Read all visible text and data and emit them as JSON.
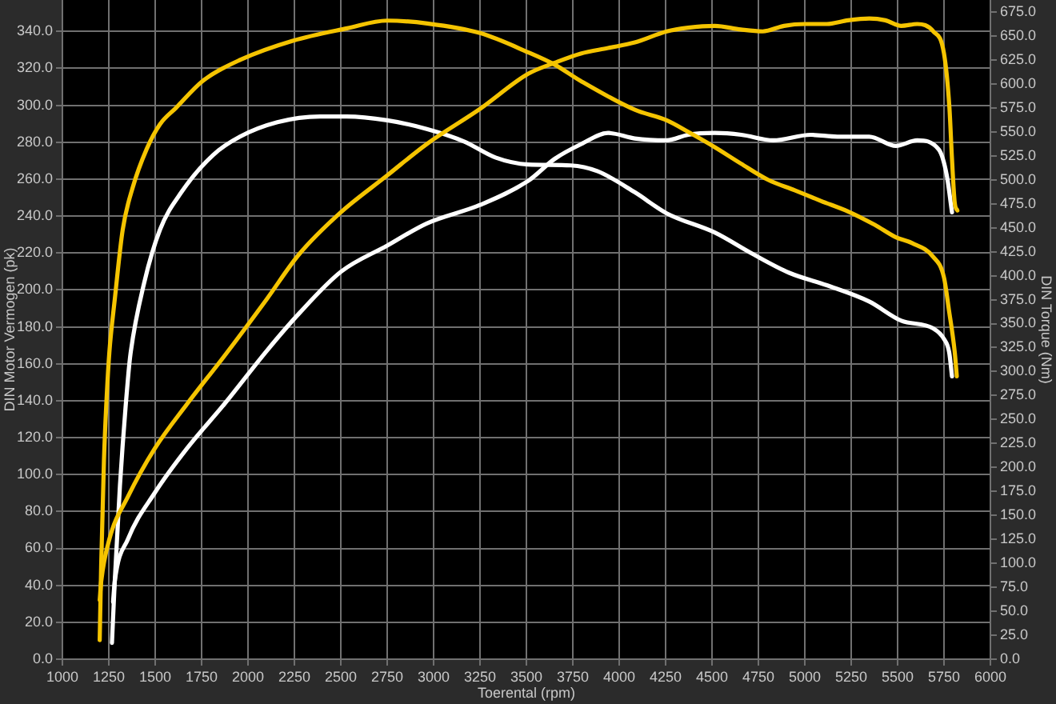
{
  "chart_data": {
    "type": "line",
    "xlabel": "Toerental (rpm)",
    "ylabel": "DIN Motor Vermogen (pk)",
    "y2label": "DIN Torque (Nm)",
    "xlim": [
      1000,
      6000
    ],
    "xticks": [
      1000,
      1250,
      1500,
      1750,
      2000,
      2250,
      2500,
      2750,
      3000,
      3250,
      3500,
      3750,
      4000,
      4250,
      4500,
      4750,
      5000,
      5250,
      5500,
      5750,
      6000
    ],
    "ylim": [
      0,
      357
    ],
    "yticks": [
      {
        "value": 0,
        "label": "0.0"
      },
      {
        "value": 20,
        "label": "20.0"
      },
      {
        "value": 40,
        "label": "40.0"
      },
      {
        "value": 60,
        "label": "60.0"
      },
      {
        "value": 80,
        "label": "80.0"
      },
      {
        "value": 100,
        "label": "100.0"
      },
      {
        "value": 120,
        "label": "120.0"
      },
      {
        "value": 140,
        "label": "140.0"
      },
      {
        "value": 160,
        "label": "160.0"
      },
      {
        "value": 180,
        "label": "180.0"
      },
      {
        "value": 200,
        "label": "200.0"
      },
      {
        "value": 220,
        "label": "220.0"
      },
      {
        "value": 240,
        "label": "240.0"
      },
      {
        "value": 260,
        "label": "260.0"
      },
      {
        "value": 280,
        "label": "280.0"
      },
      {
        "value": 300,
        "label": "300.0"
      },
      {
        "value": 320,
        "label": "320.0"
      },
      {
        "value": 340,
        "label": "340.0"
      }
    ],
    "y2lim": [
      0,
      687.5
    ],
    "y2ticks": [
      {
        "value": 0,
        "label": "0.0"
      },
      {
        "value": 25,
        "label": "25.0"
      },
      {
        "value": 50,
        "label": "50.0"
      },
      {
        "value": 75,
        "label": "75.0"
      },
      {
        "value": 100,
        "label": "100.0"
      },
      {
        "value": 125,
        "label": "125.0"
      },
      {
        "value": 150,
        "label": "150.0"
      },
      {
        "value": 175,
        "label": "175.0"
      },
      {
        "value": 200,
        "label": "200.0"
      },
      {
        "value": 225,
        "label": "225.0"
      },
      {
        "value": 250,
        "label": "250.0"
      },
      {
        "value": 275,
        "label": "275.0"
      },
      {
        "value": 300,
        "label": "300.0"
      },
      {
        "value": 325,
        "label": "325.0"
      },
      {
        "value": 350,
        "label": "350.0"
      },
      {
        "value": 375,
        "label": "375.0"
      },
      {
        "value": 400,
        "label": "400.0"
      },
      {
        "value": 425,
        "label": "425.0"
      },
      {
        "value": 450,
        "label": "450.0"
      },
      {
        "value": 475,
        "label": "475.0"
      },
      {
        "value": 500,
        "label": "500.0"
      },
      {
        "value": 525,
        "label": "525.0"
      },
      {
        "value": 550,
        "label": "550.0"
      },
      {
        "value": 575,
        "label": "575.0"
      },
      {
        "value": 600,
        "label": "600.0"
      },
      {
        "value": 625,
        "label": "625.0"
      },
      {
        "value": 650,
        "label": "650.0"
      },
      {
        "value": 675,
        "label": "675.0"
      }
    ],
    "grid": true,
    "legend": false,
    "marker": "none",
    "line_style": "solid",
    "series": [
      {
        "color": "#f5c400",
        "axis": "y2",
        "x": [
          1201,
          1209,
          1224,
          1239,
          1253,
          1282,
          1325,
          1379,
          1454,
          1526,
          1612,
          1756,
          1957,
          2241,
          2534,
          2750,
          2966,
          3250,
          3509,
          3653,
          3793,
          4084,
          4256,
          4371,
          4515,
          4655,
          4802,
          4946,
          5086,
          5233,
          5377,
          5491,
          5578,
          5690,
          5750,
          5776,
          5808,
          5819
        ],
        "values": [
          20,
          98,
          208,
          275,
          320,
          375,
          448,
          492,
          532,
          558,
          575,
          603,
          625,
          645,
          658,
          666,
          663,
          653,
          633,
          620,
          603,
          573,
          562,
          550,
          534,
          517,
          500,
          489,
          478,
          467,
          453,
          440,
          434,
          420,
          398,
          365,
          320,
          295
        ]
      },
      {
        "color": "#f5c400",
        "x": [
          1201,
          1209,
          1253,
          1353,
          1497,
          1670,
          1871,
          2101,
          2273,
          2500,
          2750,
          2963,
          3250,
          3509,
          3653,
          3793,
          3940,
          4084,
          4256,
          4371,
          4515,
          4655,
          4773,
          4888,
          5000,
          5118,
          5233,
          5348,
          5434,
          5520,
          5606,
          5692,
          5750,
          5779,
          5793,
          5808,
          5822
        ],
        "values": [
          32,
          42,
          65,
          88,
          114,
          138,
          164,
          195,
          219,
          242,
          262,
          279,
          298,
          317,
          323,
          328,
          331,
          334,
          340,
          342,
          343,
          341,
          340,
          343,
          344,
          344,
          346,
          347,
          346,
          343,
          344,
          340,
          328,
          299,
          271,
          247,
          243
        ]
      },
      {
        "color": "#ffffff",
        "axis": "y2",
        "x": [
          1267,
          1282,
          1310,
          1353,
          1368,
          1440,
          1526,
          1641,
          1813,
          1957,
          2158,
          2388,
          2532,
          2750,
          2963,
          3164,
          3336,
          3509,
          3739,
          3882,
          4084,
          4256,
          4515,
          4716,
          4916,
          5118,
          5347,
          5520,
          5692,
          5750,
          5778,
          5793
        ],
        "values": [
          17,
          81,
          181,
          292,
          320,
          392,
          448,
          487,
          526,
          545,
          560,
          566,
          566,
          562,
          553,
          540,
          523,
          516,
          515,
          509,
          487,
          465,
          445,
          423,
          403,
          390,
          373,
          353,
          345,
          334,
          320,
          295
        ]
      },
      {
        "color": "#ffffff",
        "x": [
          1273,
          1282,
          1353,
          1497,
          1670,
          1871,
          2101,
          2273,
          2503,
          2750,
          2963,
          3250,
          3509,
          3653,
          3796,
          3940,
          4084,
          4256,
          4371,
          4515,
          4658,
          4830,
          5032,
          5175,
          5347,
          5491,
          5606,
          5722,
          5765,
          5793
        ],
        "values": [
          31,
          42,
          65,
          90,
          114,
          138,
          167,
          187,
          210,
          224,
          236,
          246,
          259,
          271,
          279,
          285,
          282,
          281,
          284,
          285,
          284,
          281,
          284,
          283,
          283,
          278,
          281,
          276,
          262,
          242
        ]
      }
    ]
  }
}
